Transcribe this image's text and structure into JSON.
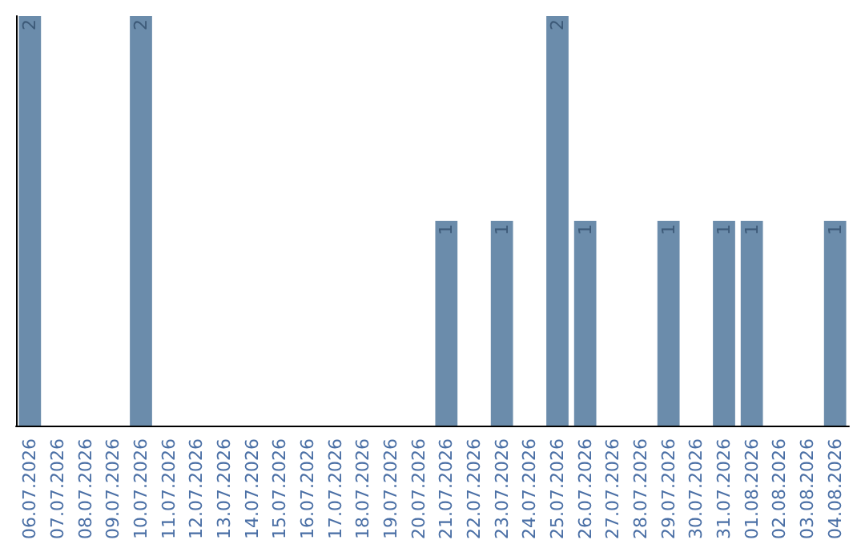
{
  "chart_data": {
    "type": "bar",
    "categories": [
      "06.07.2026",
      "07.07.2026",
      "08.07.2026",
      "09.07.2026",
      "10.07.2026",
      "11.07.2026",
      "12.07.2026",
      "13.07.2026",
      "14.07.2026",
      "15.07.2026",
      "16.07.2026",
      "17.07.2026",
      "18.07.2026",
      "19.07.2026",
      "20.07.2026",
      "21.07.2026",
      "22.07.2026",
      "23.07.2026",
      "24.07.2026",
      "25.07.2026",
      "26.07.2026",
      "27.07.2026",
      "28.07.2026",
      "29.07.2026",
      "30.07.2026",
      "31.07.2026",
      "01.08.2026",
      "02.08.2026",
      "03.08.2026",
      "04.08.2026"
    ],
    "values": [
      2,
      0,
      0,
      0,
      2,
      0,
      0,
      0,
      0,
      0,
      0,
      0,
      0,
      0,
      0,
      1,
      0,
      1,
      0,
      2,
      1,
      0,
      0,
      1,
      0,
      1,
      1,
      0,
      0,
      1
    ],
    "value_labels": [
      "2",
      null,
      null,
      null,
      "2",
      null,
      null,
      null,
      null,
      null,
      null,
      null,
      null,
      null,
      null,
      "1",
      null,
      "1",
      null,
      "2",
      "1",
      null,
      null,
      "1",
      null,
      "1",
      "1",
      null,
      null,
      "1"
    ],
    "color": "#6b8cab"
  }
}
